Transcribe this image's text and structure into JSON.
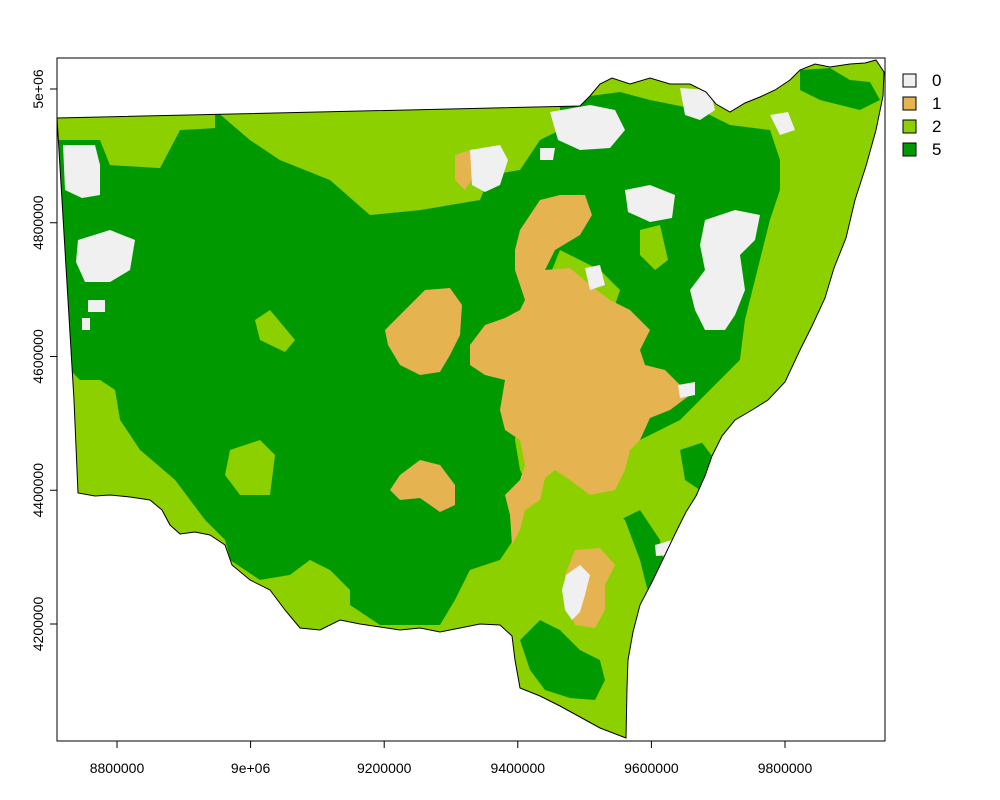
{
  "map": {
    "x_axis": {
      "ticks": [
        "8800000",
        "9e+06",
        "9200000",
        "9400000",
        "9600000",
        "9800000"
      ],
      "tick_values": [
        8800000,
        9000000,
        9200000,
        9400000,
        9600000,
        9800000
      ]
    },
    "y_axis": {
      "ticks": [
        "4200000",
        "4400000",
        "4600000",
        "4800000",
        "5e+06"
      ],
      "tick_values": [
        4200000,
        4400000,
        4600000,
        4800000,
        5000000
      ]
    },
    "legend": {
      "placement": "top-right",
      "entries": [
        {
          "label": "0",
          "color": "#f0f0f0"
        },
        {
          "label": "1",
          "color": "#e5b350"
        },
        {
          "label": "2",
          "color": "#8cd000"
        },
        {
          "label": "5",
          "color": "#009a00"
        }
      ]
    },
    "colors": {
      "class_0": "#f0f0f0",
      "class_1": "#e5b350",
      "class_2": "#8cd000",
      "class_5": "#009a00",
      "border": "#000000"
    }
  }
}
